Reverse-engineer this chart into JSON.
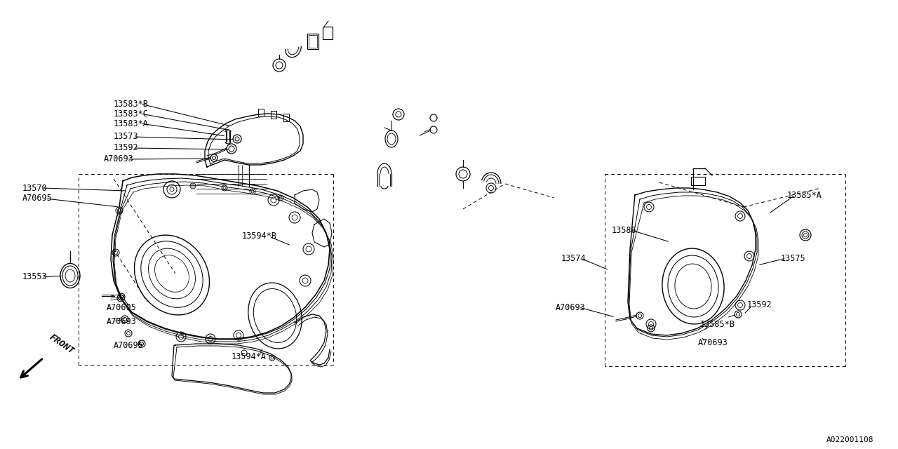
{
  "bg_color": "#ffffff",
  "line_color": "#000000",
  "diagram_id": "A022001108",
  "front_text": "FRONT",
  "labels_left": [
    [
      "13583*B",
      162,
      148
    ],
    [
      "13583*C",
      162,
      162
    ],
    [
      "13583*A",
      162,
      176
    ],
    [
      "13573",
      162,
      195
    ],
    [
      "13592",
      162,
      211
    ],
    [
      "A70693",
      148,
      227
    ],
    [
      "13570",
      30,
      268
    ],
    [
      "A70695",
      30,
      283
    ],
    [
      "13553",
      30,
      395
    ],
    [
      "A70695",
      152,
      438
    ],
    [
      "A70693",
      152,
      458
    ],
    [
      "A70695",
      162,
      492
    ],
    [
      "13594*B",
      348,
      337
    ],
    [
      "13594*A",
      335,
      508
    ]
  ],
  "labels_right": [
    [
      "13585*A",
      1130,
      278,
      "right"
    ],
    [
      "13586",
      870,
      328,
      "left"
    ],
    [
      "13574",
      798,
      368,
      "left"
    ],
    [
      "A70693",
      790,
      438,
      "left"
    ],
    [
      "13575",
      1120,
      368,
      "right"
    ],
    [
      "13592",
      1048,
      435,
      "right"
    ],
    [
      "13585*B",
      998,
      462,
      "right"
    ],
    [
      "A70693",
      988,
      488,
      "right"
    ]
  ]
}
